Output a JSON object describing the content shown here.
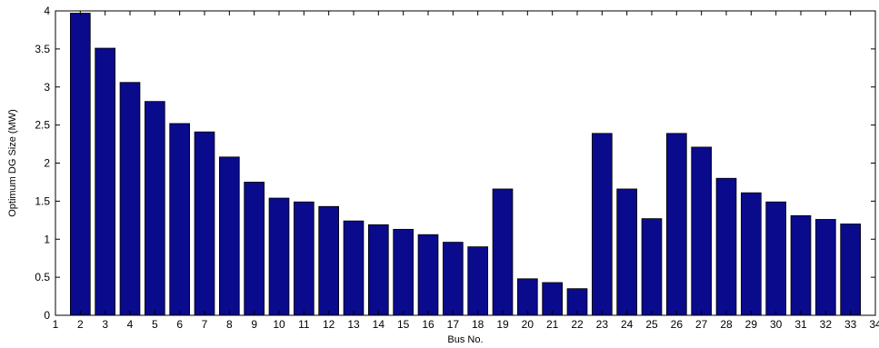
{
  "chart_data": {
    "type": "bar",
    "xlabel": "Bus No.",
    "ylabel": "Optimum DG Size (MW)",
    "xlim": [
      1,
      34
    ],
    "ylim": [
      0,
      4
    ],
    "xticks": [
      "1",
      "2",
      "3",
      "4",
      "5",
      "6",
      "7",
      "8",
      "9",
      "10",
      "11",
      "12",
      "13",
      "14",
      "15",
      "16",
      "17",
      "18",
      "19",
      "20",
      "21",
      "22",
      "23",
      "24",
      "25",
      "26",
      "27",
      "28",
      "29",
      "30",
      "31",
      "32",
      "33",
      "34"
    ],
    "yticks": [
      "0",
      "0.5",
      "1",
      "1.5",
      "2",
      "2.5",
      "3",
      "3.5",
      "4"
    ],
    "categories": [
      2,
      3,
      4,
      5,
      6,
      7,
      8,
      9,
      10,
      11,
      12,
      13,
      14,
      15,
      16,
      17,
      18,
      19,
      20,
      21,
      22,
      23,
      24,
      25,
      26,
      27,
      28,
      29,
      30,
      31,
      32,
      33
    ],
    "values": [
      3.97,
      3.51,
      3.06,
      2.81,
      2.52,
      2.41,
      2.08,
      1.75,
      1.54,
      1.49,
      1.43,
      1.24,
      1.19,
      1.13,
      1.06,
      0.96,
      0.9,
      1.66,
      0.48,
      0.43,
      0.35,
      2.39,
      1.66,
      1.27,
      2.39,
      2.21,
      1.8,
      1.61,
      1.49,
      1.31,
      1.26,
      1.2
    ],
    "grid": false,
    "colors": {
      "bar": "#0a0a8c",
      "bar_edge": "#000000",
      "axis": "#000000"
    }
  }
}
